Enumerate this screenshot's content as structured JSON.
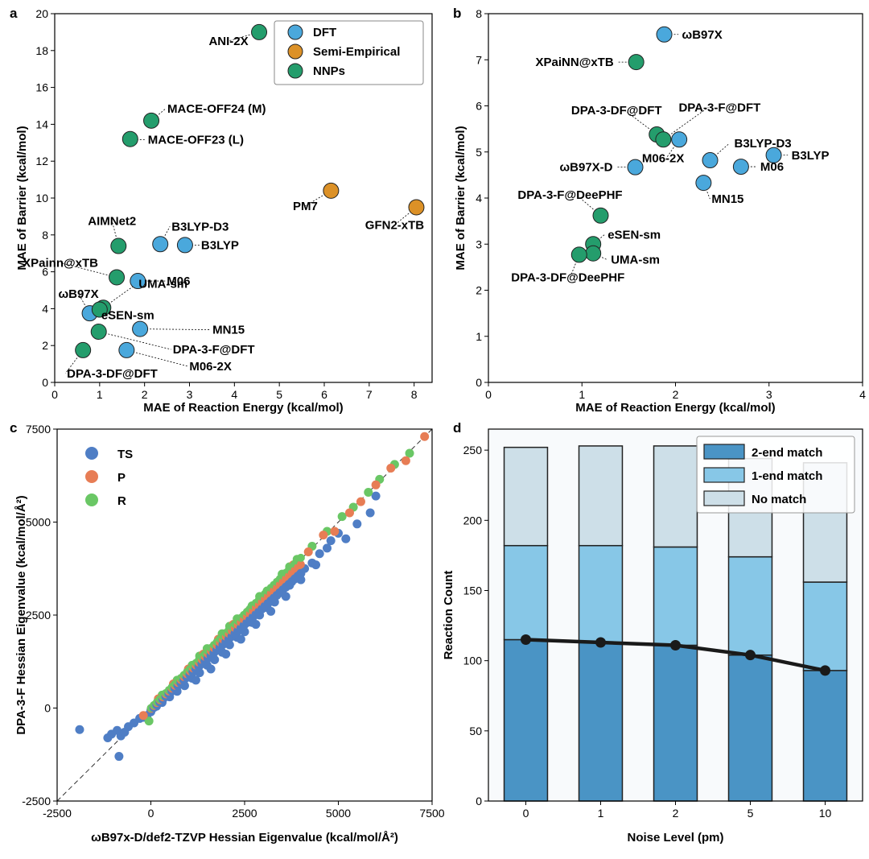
{
  "colors": {
    "DFT": "#4aa8dc",
    "Semi-Empirical": "#dc9127",
    "NNPs": "#249d6c",
    "TS": "#4f7ec5",
    "P": "#e77d55",
    "R": "#6ac765",
    "2-end match": "#4a94c5",
    "1-end match": "#87c7e7",
    "No match": "#cddfe8",
    "line": "#1a1a1a"
  },
  "chart_data": [
    {
      "panel": "a",
      "type": "scatter",
      "xlabel": "MAE of Reaction Energy (kcal/mol)",
      "ylabel": "MAE of Barrier (kcal/mol)",
      "xlim": [
        0,
        8.4
      ],
      "ylim": [
        0,
        20
      ],
      "xticks": [
        0,
        1,
        2,
        3,
        4,
        5,
        6,
        7,
        8
      ],
      "yticks": [
        0,
        2,
        4,
        6,
        8,
        10,
        12,
        14,
        16,
        18,
        20
      ],
      "legend": {
        "position": "top-right",
        "entries": [
          "DFT",
          "Semi-Empirical",
          "NNPs"
        ]
      },
      "points": [
        {
          "label": "ANI-2X",
          "group": "NNPs",
          "x": 4.55,
          "y": 19.0
        },
        {
          "label": "MACE-OFF24 (M)",
          "group": "NNPs",
          "x": 2.15,
          "y": 14.2
        },
        {
          "label": "MACE-OFF23 (L)",
          "group": "NNPs",
          "x": 1.68,
          "y": 13.2
        },
        {
          "label": "PM7",
          "group": "Semi-Empirical",
          "x": 6.15,
          "y": 10.4
        },
        {
          "label": "GFN2-xTB",
          "group": "Semi-Empirical",
          "x": 8.05,
          "y": 9.5
        },
        {
          "label": "AIMNet2",
          "group": "NNPs",
          "x": 1.42,
          "y": 7.4
        },
        {
          "label": "B3LYP-D3",
          "group": "DFT",
          "x": 2.35,
          "y": 7.5
        },
        {
          "label": "B3LYP",
          "group": "DFT",
          "x": 2.9,
          "y": 7.45
        },
        {
          "label": "XPainn@xTB",
          "group": "NNPs",
          "x": 1.38,
          "y": 5.7
        },
        {
          "label": "M06",
          "group": "DFT",
          "x": 1.85,
          "y": 5.5
        },
        {
          "label": "ωB97X",
          "group": "DFT",
          "x": 0.78,
          "y": 3.75
        },
        {
          "label": "UMA-sm",
          "group": "NNPs",
          "x": 1.08,
          "y": 4.05
        },
        {
          "label": "eSEN-sm",
          "group": "NNPs",
          "x": 1.0,
          "y": 3.95
        },
        {
          "label": "MN15",
          "group": "DFT",
          "x": 1.9,
          "y": 2.9
        },
        {
          "label": "DPA-3-F@DFT",
          "group": "NNPs",
          "x": 0.98,
          "y": 2.75
        },
        {
          "label": "M06-2X",
          "group": "DFT",
          "x": 1.6,
          "y": 1.75
        },
        {
          "label": "DPA-3-DF@DFT",
          "group": "NNPs",
          "x": 0.63,
          "y": 1.75
        }
      ]
    },
    {
      "panel": "b",
      "type": "scatter",
      "xlabel": "MAE of Reaction Energy (kcal/mol)",
      "ylabel": "MAE of Barrier (kcal/mol)",
      "xlim": [
        0,
        4
      ],
      "ylim": [
        0,
        8
      ],
      "xticks": [
        0,
        1,
        2,
        3,
        4
      ],
      "yticks": [
        0,
        1,
        2,
        3,
        4,
        5,
        6,
        7,
        8
      ],
      "points": [
        {
          "label": "ωB97X",
          "group": "DFT",
          "x": 1.88,
          "y": 7.55
        },
        {
          "label": "XPaiNN@xTB",
          "group": "NNPs",
          "x": 1.58,
          "y": 6.95
        },
        {
          "label": "DPA-3-DF@DFT",
          "group": "NNPs",
          "x": 1.8,
          "y": 5.38
        },
        {
          "label": "DPA-3-F@DFT",
          "group": "NNPs",
          "x": 1.87,
          "y": 5.27
        },
        {
          "label": "M06-2X",
          "group": "DFT",
          "x": 2.04,
          "y": 5.27
        },
        {
          "label": "B3LYP-D3",
          "group": "DFT",
          "x": 2.37,
          "y": 4.82
        },
        {
          "label": "B3LYP",
          "group": "DFT",
          "x": 3.05,
          "y": 4.93
        },
        {
          "label": "ωB97X-D",
          "group": "DFT",
          "x": 1.57,
          "y": 4.67
        },
        {
          "label": "M06",
          "group": "DFT",
          "x": 2.7,
          "y": 4.68
        },
        {
          "label": "MN15",
          "group": "DFT",
          "x": 2.3,
          "y": 4.33
        },
        {
          "label": "DPA-3-F@DeePHF",
          "group": "NNPs",
          "x": 1.2,
          "y": 3.62
        },
        {
          "label": "eSEN-sm",
          "group": "NNPs",
          "x": 1.12,
          "y": 3.0
        },
        {
          "label": "UMA-sm",
          "group": "NNPs",
          "x": 1.12,
          "y": 2.8
        },
        {
          "label": "DPA-3-DF@DeePHF",
          "group": "NNPs",
          "x": 0.97,
          "y": 2.77
        }
      ]
    },
    {
      "panel": "c",
      "type": "scatter",
      "xlabel": "ωB97x-D/def2-TZVP Hessian Eigenvalue (kcal/mol/Å²)",
      "ylabel": "DPA-3-F Hessian Eigenvalue (kcal/mol/Å²)",
      "xlim": [
        -2500,
        7500
      ],
      "ylim": [
        -2500,
        7500
      ],
      "xticks": [
        -2500,
        0,
        2500,
        5000,
        7500
      ],
      "yticks": [
        -2500,
        0,
        2500,
        5000,
        7500
      ],
      "legend": {
        "position": "top-left",
        "entries": [
          "TS",
          "P",
          "R"
        ]
      },
      "diagonal": true,
      "series": [
        {
          "name": "TS",
          "points": [
            [
              -1900,
              -580
            ],
            [
              -1150,
              -800
            ],
            [
              -1050,
              -700
            ],
            [
              -900,
              -600
            ],
            [
              -850,
              -1300
            ],
            [
              -800,
              -750
            ],
            [
              -700,
              -650
            ],
            [
              -600,
              -500
            ],
            [
              -450,
              -400
            ],
            [
              -300,
              -280
            ],
            [
              -200,
              -250
            ],
            [
              -100,
              -200
            ],
            [
              0,
              -100
            ],
            [
              150,
              50
            ],
            [
              300,
              150
            ],
            [
              500,
              300
            ],
            [
              700,
              450
            ],
            [
              900,
              600
            ],
            [
              1100,
              800
            ],
            [
              1300,
              950
            ],
            [
              1500,
              1150
            ],
            [
              1700,
              1300
            ],
            [
              1900,
              1500
            ],
            [
              2100,
              1700
            ],
            [
              2300,
              1900
            ],
            [
              2500,
              2050
            ],
            [
              2700,
              2300
            ],
            [
              2900,
              2500
            ],
            [
              3100,
              2700
            ],
            [
              3300,
              2850
            ],
            [
              3500,
              3100
            ],
            [
              3700,
              3300
            ],
            [
              3900,
              3500
            ],
            [
              4100,
              3750
            ],
            [
              4300,
              3900
            ],
            [
              4500,
              4150
            ],
            [
              4700,
              4300
            ],
            [
              4800,
              4500
            ],
            [
              5000,
              4700
            ],
            [
              5200,
              4550
            ],
            [
              5500,
              4950
            ],
            [
              5850,
              5250
            ],
            [
              6000,
              5700
            ],
            [
              1200,
              750
            ],
            [
              1600,
              1050
            ],
            [
              2000,
              1450
            ],
            [
              2400,
              1850
            ],
            [
              2800,
              2250
            ],
            [
              3200,
              2600
            ],
            [
              3600,
              3000
            ],
            [
              4000,
              3450
            ],
            [
              4400,
              3850
            ]
          ]
        },
        {
          "name": "P",
          "points": [
            [
              -200,
              -200
            ],
            [
              200,
              250
            ],
            [
              600,
              650
            ],
            [
              1000,
              1050
            ],
            [
              1400,
              1450
            ],
            [
              1800,
              1850
            ],
            [
              2200,
              2250
            ],
            [
              2600,
              2600
            ],
            [
              3000,
              3000
            ],
            [
              3400,
              3400
            ],
            [
              3800,
              3850
            ],
            [
              4200,
              4200
            ],
            [
              4600,
              4650
            ],
            [
              4900,
              4750
            ],
            [
              5300,
              5250
            ],
            [
              5600,
              5550
            ],
            [
              6000,
              6000
            ],
            [
              6400,
              6450
            ],
            [
              6800,
              6650
            ],
            [
              7300,
              7300
            ],
            [
              1200,
              1050
            ],
            [
              2000,
              1800
            ],
            [
              2800,
              2550
            ],
            [
              3600,
              3350
            ]
          ]
        },
        {
          "name": "R",
          "points": [
            [
              -50,
              -350
            ],
            [
              300,
              350
            ],
            [
              700,
              750
            ],
            [
              1100,
              1150
            ],
            [
              1500,
              1600
            ],
            [
              1900,
              2000
            ],
            [
              2300,
              2400
            ],
            [
              2700,
              2750
            ],
            [
              3100,
              3150
            ],
            [
              3500,
              3600
            ],
            [
              3900,
              4000
            ],
            [
              4300,
              4350
            ],
            [
              4700,
              4750
            ],
            [
              5100,
              5150
            ],
            [
              5400,
              5400
            ],
            [
              5800,
              5800
            ],
            [
              6100,
              6150
            ],
            [
              6500,
              6550
            ],
            [
              6900,
              6850
            ],
            [
              1300,
              1400
            ],
            [
              2100,
              2200
            ],
            [
              2900,
              3000
            ],
            [
              3700,
              3800
            ]
          ]
        }
      ]
    },
    {
      "panel": "d",
      "type": "bar",
      "stacked": true,
      "xlabel": "Noise Level (pm)",
      "ylabel": "Reaction Count",
      "categories": [
        "0",
        "1",
        "2",
        "5",
        "10"
      ],
      "ylim": [
        0,
        265
      ],
      "yticks": [
        0,
        50,
        100,
        150,
        200,
        250
      ],
      "legend": {
        "position": "top-right",
        "entries": [
          "2-end match",
          "1-end match",
          "No match"
        ]
      },
      "series": [
        {
          "name": "2-end match",
          "values": [
            115,
            113,
            111,
            104,
            93
          ]
        },
        {
          "name": "1-end match",
          "values": [
            67,
            69,
            70,
            70,
            63
          ]
        },
        {
          "name": "No match",
          "values": [
            70,
            71,
            72,
            70,
            85
          ]
        }
      ],
      "line": {
        "values": [
          115,
          113,
          111,
          104,
          93
        ]
      }
    }
  ]
}
